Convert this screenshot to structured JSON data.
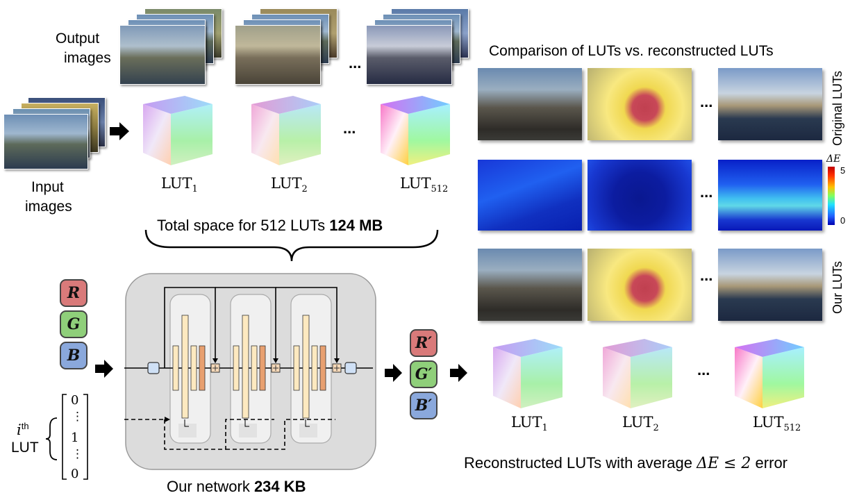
{
  "labels": {
    "output_images_1": "Output",
    "output_images_2": "images",
    "input_images_1": "Input",
    "input_images_2": "images",
    "lut_base": "LUT",
    "lut_sub_1": "1",
    "lut_sub_2": "2",
    "lut_sub_512": "512",
    "ellipsis": "...",
    "total_space_prefix": "Total space for 512 LUTs ",
    "total_space_value": "124 MB",
    "comparison_title": "Comparison of LUTs vs. reconstructed LUTs",
    "original_luts": "Original LUTs",
    "our_luts": "Our LUTs",
    "delta_e": "ΔE",
    "scale_max": "5",
    "scale_min": "0",
    "r": "R",
    "g": "G",
    "b": "B",
    "r_prime": "R′",
    "g_prime": "G′",
    "b_prime": "B′",
    "ith": "i",
    "th_sup": "th",
    "lut_word": "LUT",
    "vec_0_top": "0",
    "vec_dots": "⋮",
    "vec_1": "1",
    "vec_0_bottom": "0",
    "network_prefix": "Our network ",
    "network_value": "234 KB",
    "reconstructed_prefix": "Reconstructed LUTs with average ",
    "reconstructed_math": "ΔE ≤ 2",
    "reconstructed_suffix": " error"
  },
  "colors": {
    "r_box": "#d97a7a",
    "g_box": "#8fcf7a",
    "b_box": "#8aa8dc",
    "network_bg": "#dcdcdc",
    "block_bg": "#f0f0f0",
    "bar_light": "#fde9c0",
    "bar_dark": "#e8a070"
  }
}
